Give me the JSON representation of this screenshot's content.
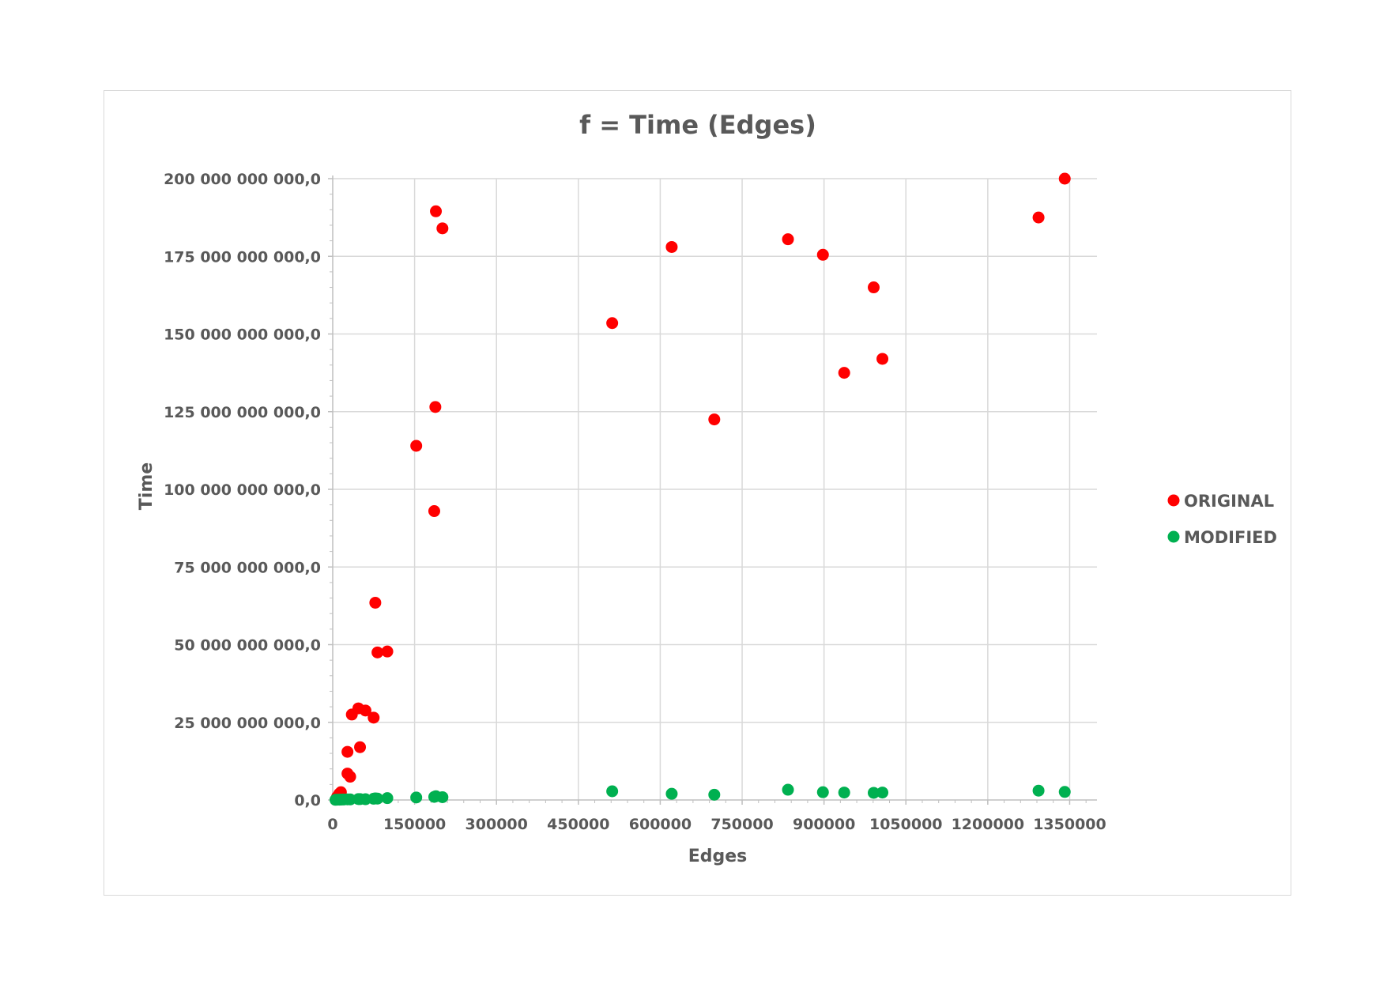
{
  "chart_data": {
    "type": "scatter",
    "title": "f = Time (Edges)",
    "xlabel": "Edges",
    "ylabel": "Time",
    "xlim": [
      0,
      1400000
    ],
    "ylim": [
      0,
      200000000000
    ],
    "x_ticks": [
      0,
      150000,
      300000,
      450000,
      600000,
      750000,
      900000,
      1050000,
      1200000,
      1350000
    ],
    "x_tick_labels": [
      "0",
      "150000",
      "300000",
      "450000",
      "600000",
      "750000",
      "900000",
      "1050000",
      "1200000",
      "1350000"
    ],
    "y_ticks": [
      0,
      25000000000,
      50000000000,
      75000000000,
      100000000000,
      125000000000,
      150000000000,
      175000000000,
      200000000000
    ],
    "y_tick_labels": [
      "0,0",
      "25 000 000 000,0",
      "50 000 000 000,0",
      "75 000 000 000,0",
      "100 000 000 000,0",
      "125 000 000 000,0",
      "150 000 000 000,0",
      "175 000 000 000,0",
      "200 000 000 000,0"
    ],
    "grid": true,
    "legend_position": "right",
    "series": [
      {
        "name": "ORIGINAL",
        "color": "#ff0000",
        "points": [
          [
            8000,
            1000000000
          ],
          [
            12000,
            2000000000
          ],
          [
            15000,
            2500000000
          ],
          [
            27000,
            8500000000
          ],
          [
            27000,
            15500000000
          ],
          [
            32000,
            7500000000
          ],
          [
            35000,
            27500000000
          ],
          [
            47000,
            29500000000
          ],
          [
            50000,
            17000000000
          ],
          [
            60000,
            28800000000
          ],
          [
            75000,
            26500000000
          ],
          [
            78000,
            63500000000
          ],
          [
            82000,
            47500000000
          ],
          [
            100000,
            47800000000
          ],
          [
            153000,
            114000000000
          ],
          [
            186000,
            93000000000
          ],
          [
            188000,
            126500000000
          ],
          [
            189000,
            189500000000
          ],
          [
            201000,
            184000000000
          ],
          [
            512000,
            153500000000
          ],
          [
            621000,
            178000000000
          ],
          [
            699000,
            122500000000
          ],
          [
            834000,
            180500000000
          ],
          [
            898000,
            175500000000
          ],
          [
            937000,
            137500000000
          ],
          [
            991000,
            165000000000
          ],
          [
            1007000,
            142000000000
          ],
          [
            1293000,
            187500000000
          ],
          [
            1341000,
            200000000000
          ]
        ]
      },
      {
        "name": "MODIFIED",
        "color": "#00b050",
        "points": [
          [
            5000,
            50000000
          ],
          [
            8000,
            80000000
          ],
          [
            12000,
            100000000
          ],
          [
            15000,
            120000000
          ],
          [
            20000,
            150000000
          ],
          [
            27000,
            200000000
          ],
          [
            32000,
            180000000
          ],
          [
            47000,
            300000000
          ],
          [
            50000,
            280000000
          ],
          [
            60000,
            250000000
          ],
          [
            75000,
            400000000
          ],
          [
            78000,
            500000000
          ],
          [
            82000,
            450000000
          ],
          [
            100000,
            600000000
          ],
          [
            153000,
            800000000
          ],
          [
            186000,
            1000000000
          ],
          [
            189000,
            1200000000
          ],
          [
            201000,
            900000000
          ],
          [
            512000,
            2800000000
          ],
          [
            621000,
            2000000000
          ],
          [
            699000,
            1700000000
          ],
          [
            834000,
            3300000000
          ],
          [
            898000,
            2500000000
          ],
          [
            937000,
            2400000000
          ],
          [
            991000,
            2300000000
          ],
          [
            1007000,
            2400000000
          ],
          [
            1293000,
            3000000000
          ],
          [
            1341000,
            2600000000
          ]
        ]
      }
    ]
  }
}
